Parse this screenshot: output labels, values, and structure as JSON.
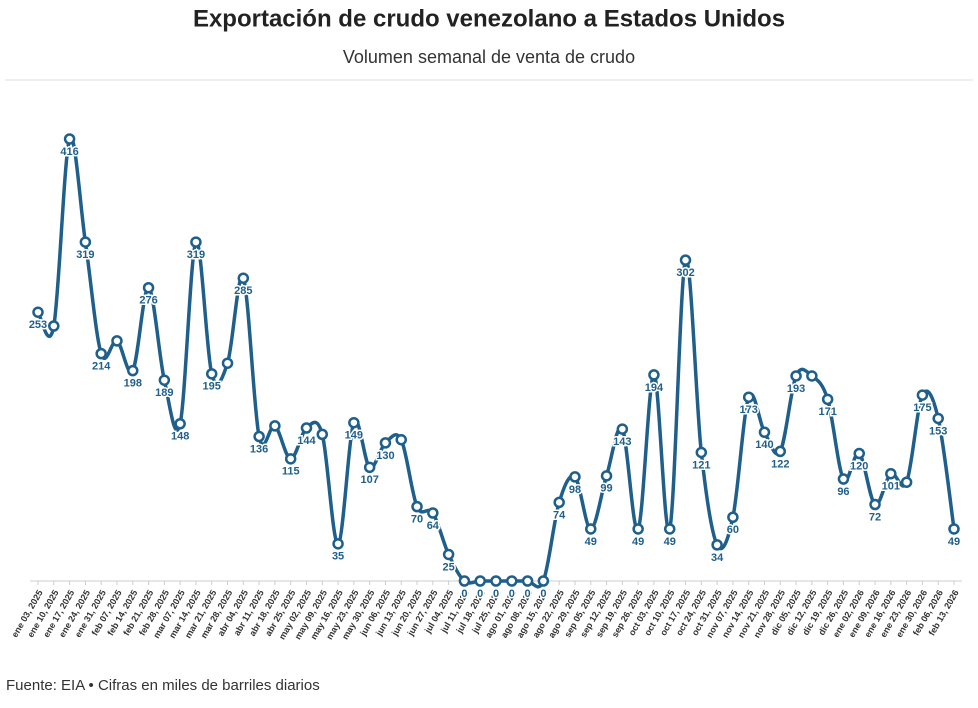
{
  "chart_data": {
    "type": "line",
    "title": "Exportación de crudo venezolano a Estados Unidos",
    "subtitle": "Volumen semanal de venta de crudo",
    "footer": "Fuente: EIA • Cifras en miles de barriles diarios",
    "categories": [
      "ene 03, 2025",
      "ene 10, 2025",
      "ene 17, 2025",
      "ene 24, 2025",
      "ene 31, 2025",
      "feb 07, 2025",
      "feb 14, 2025",
      "feb 21, 2025",
      "feb 28, 2025",
      "mar 07, 2025",
      "mar 14, 2025",
      "mar 21, 2025",
      "mar 28, 2025",
      "abr 04, 2025",
      "abr 11, 2025",
      "abr 18, 2025",
      "abr 25, 2025",
      "may 02, 2025",
      "may 09, 2025",
      "may 16, 2025",
      "may 23, 2025",
      "may 30, 2025",
      "jun 06, 2025",
      "jun 13, 2025",
      "jun 20, 2025",
      "jun 27, 2025",
      "jul 04, 2025",
      "jul 11, 2025",
      "jul 18, 2025",
      "jul 25, 2025",
      "ago 01, 2025",
      "ago 08, 2025",
      "ago 15, 2025",
      "ago 22, 2025",
      "ago 29, 2025",
      "sep 05, 2025",
      "sep 12, 2025",
      "sep 19, 2025",
      "sep 26, 2025",
      "oct 03, 2025",
      "oct 10, 2025",
      "oct 17, 2025",
      "oct 24, 2025",
      "oct 31, 2025",
      "nov 07, 2025",
      "nov 14, 2025",
      "nov 21, 2025",
      "nov 28, 2025",
      "dic 05, 2025",
      "dic 12, 2025",
      "dic 19, 2025",
      "dic 26, 2025",
      "ene 02, 2026",
      "ene 09, 2026",
      "ene 16, 2026",
      "ene 23, 2026",
      "ene 30, 2026",
      "feb 06, 2026",
      "feb 13, 2026"
    ],
    "values": [
      253,
      240,
      416,
      319,
      214,
      226,
      198,
      276,
      189,
      148,
      319,
      195,
      205,
      285,
      136,
      146,
      115,
      144,
      138,
      35,
      149,
      107,
      130,
      133,
      70,
      64,
      25,
      0,
      0,
      0,
      0,
      0,
      0,
      74,
      98,
      49,
      99,
      143,
      49,
      194,
      49,
      302,
      121,
      34,
      60,
      173,
      140,
      122,
      193,
      193,
      171,
      96,
      120,
      72,
      101,
      93,
      175,
      153,
      49
    ],
    "value_labels": [
      "253",
      null,
      "416",
      "319",
      "214",
      null,
      "198",
      "276",
      "189",
      "148",
      "319",
      "195",
      null,
      "285",
      "136",
      null,
      "115",
      "144",
      null,
      "35",
      "149",
      "107",
      "130",
      null,
      "70",
      "64",
      "25",
      "0",
      "0",
      "0",
      "0",
      "0",
      "0",
      "74",
      "98",
      "49",
      "99",
      "143",
      "49",
      "194",
      "49",
      "302",
      "121",
      "34",
      "60",
      "173",
      "140",
      "122",
      "193",
      null,
      "171",
      "96",
      "120",
      "72",
      "101",
      null,
      "175",
      "153",
      "49"
    ],
    "color": "#1f5f8b"
  }
}
